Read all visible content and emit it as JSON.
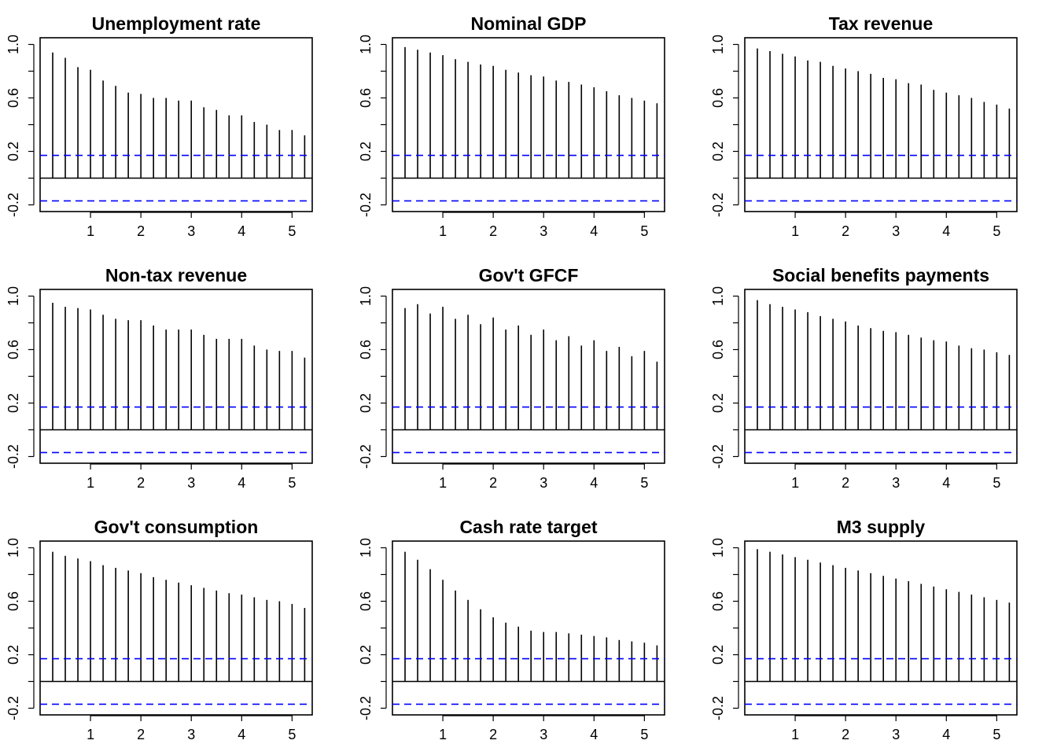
{
  "chart_data": [
    {
      "type": "bar",
      "title": "Unemployment rate",
      "x": [
        0.25,
        0.5,
        0.75,
        1.0,
        1.25,
        1.5,
        1.75,
        2.0,
        2.25,
        2.5,
        2.75,
        3.0,
        3.25,
        3.5,
        3.75,
        4.0,
        4.25,
        4.5,
        4.75,
        5.0,
        5.25
      ],
      "values": [
        0.94,
        0.9,
        0.83,
        0.81,
        0.73,
        0.69,
        0.64,
        0.63,
        0.6,
        0.6,
        0.58,
        0.58,
        0.53,
        0.51,
        0.47,
        0.47,
        0.42,
        0.4,
        0.36,
        0.36,
        0.32
      ],
      "conf_limit": 0.17,
      "xlim": [
        0,
        5.4
      ],
      "ylim": [
        -0.25,
        1.05
      ],
      "xticks": [
        "1",
        "2",
        "3",
        "4",
        "5"
      ],
      "yticks": [
        "-0.2",
        "0.2",
        "0.6",
        "1.0"
      ]
    },
    {
      "type": "bar",
      "title": "Nominal GDP",
      "x": [
        0.25,
        0.5,
        0.75,
        1.0,
        1.25,
        1.5,
        1.75,
        2.0,
        2.25,
        2.5,
        2.75,
        3.0,
        3.25,
        3.5,
        3.75,
        4.0,
        4.25,
        4.5,
        4.75,
        5.0,
        5.25
      ],
      "values": [
        0.98,
        0.96,
        0.94,
        0.92,
        0.89,
        0.87,
        0.85,
        0.84,
        0.81,
        0.79,
        0.77,
        0.76,
        0.73,
        0.72,
        0.7,
        0.68,
        0.65,
        0.62,
        0.6,
        0.58,
        0.56
      ],
      "conf_limit": 0.17,
      "xlim": [
        0,
        5.4
      ],
      "ylim": [
        -0.25,
        1.05
      ],
      "xticks": [
        "1",
        "2",
        "3",
        "4",
        "5"
      ],
      "yticks": [
        "-0.2",
        "0.2",
        "0.6",
        "1.0"
      ]
    },
    {
      "type": "bar",
      "title": "Tax revenue",
      "x": [
        0.25,
        0.5,
        0.75,
        1.0,
        1.25,
        1.5,
        1.75,
        2.0,
        2.25,
        2.5,
        2.75,
        3.0,
        3.25,
        3.5,
        3.75,
        4.0,
        4.25,
        4.5,
        4.75,
        5.0,
        5.25
      ],
      "values": [
        0.97,
        0.95,
        0.93,
        0.91,
        0.88,
        0.87,
        0.84,
        0.82,
        0.8,
        0.78,
        0.75,
        0.74,
        0.71,
        0.7,
        0.66,
        0.64,
        0.62,
        0.6,
        0.57,
        0.55,
        0.52
      ],
      "conf_limit": 0.17,
      "xlim": [
        0,
        5.4
      ],
      "ylim": [
        -0.25,
        1.05
      ],
      "xticks": [
        "1",
        "2",
        "3",
        "4",
        "5"
      ],
      "yticks": [
        "-0.2",
        "0.2",
        "0.6",
        "1.0"
      ]
    },
    {
      "type": "bar",
      "title": "Non-tax revenue",
      "x": [
        0.25,
        0.5,
        0.75,
        1.0,
        1.25,
        1.5,
        1.75,
        2.0,
        2.25,
        2.5,
        2.75,
        3.0,
        3.25,
        3.5,
        3.75,
        4.0,
        4.25,
        4.5,
        4.75,
        5.0,
        5.25
      ],
      "values": [
        0.95,
        0.92,
        0.91,
        0.9,
        0.86,
        0.83,
        0.82,
        0.82,
        0.78,
        0.75,
        0.75,
        0.75,
        0.71,
        0.68,
        0.68,
        0.68,
        0.63,
        0.6,
        0.59,
        0.59,
        0.54
      ],
      "conf_limit": 0.17,
      "xlim": [
        0,
        5.4
      ],
      "ylim": [
        -0.25,
        1.05
      ],
      "xticks": [
        "1",
        "2",
        "3",
        "4",
        "5"
      ],
      "yticks": [
        "-0.2",
        "0.2",
        "0.6",
        "1.0"
      ]
    },
    {
      "type": "bar",
      "title": "Gov't GFCF",
      "x": [
        0.25,
        0.5,
        0.75,
        1.0,
        1.25,
        1.5,
        1.75,
        2.0,
        2.25,
        2.5,
        2.75,
        3.0,
        3.25,
        3.5,
        3.75,
        4.0,
        4.25,
        4.5,
        4.75,
        5.0,
        5.25
      ],
      "values": [
        0.91,
        0.94,
        0.87,
        0.92,
        0.83,
        0.86,
        0.79,
        0.84,
        0.75,
        0.78,
        0.71,
        0.75,
        0.67,
        0.7,
        0.63,
        0.67,
        0.59,
        0.62,
        0.55,
        0.59,
        0.51
      ],
      "conf_limit": 0.17,
      "xlim": [
        0,
        5.4
      ],
      "ylim": [
        -0.25,
        1.05
      ],
      "xticks": [
        "1",
        "2",
        "3",
        "4",
        "5"
      ],
      "yticks": [
        "-0.2",
        "0.2",
        "0.6",
        "1.0"
      ]
    },
    {
      "type": "bar",
      "title": "Social benefits payments",
      "x": [
        0.25,
        0.5,
        0.75,
        1.0,
        1.25,
        1.5,
        1.75,
        2.0,
        2.25,
        2.5,
        2.75,
        3.0,
        3.25,
        3.5,
        3.75,
        4.0,
        4.25,
        4.5,
        4.75,
        5.0,
        5.25
      ],
      "values": [
        0.97,
        0.94,
        0.92,
        0.9,
        0.88,
        0.85,
        0.83,
        0.81,
        0.78,
        0.76,
        0.74,
        0.73,
        0.71,
        0.69,
        0.67,
        0.66,
        0.63,
        0.61,
        0.6,
        0.58,
        0.56
      ],
      "conf_limit": 0.17,
      "xlim": [
        0,
        5.4
      ],
      "ylim": [
        -0.25,
        1.05
      ],
      "xticks": [
        "1",
        "2",
        "3",
        "4",
        "5"
      ],
      "yticks": [
        "-0.2",
        "0.2",
        "0.6",
        "1.0"
      ]
    },
    {
      "type": "bar",
      "title": "Gov't consumption",
      "x": [
        0.25,
        0.5,
        0.75,
        1.0,
        1.25,
        1.5,
        1.75,
        2.0,
        2.25,
        2.5,
        2.75,
        3.0,
        3.25,
        3.5,
        3.75,
        4.0,
        4.25,
        4.5,
        4.75,
        5.0,
        5.25
      ],
      "values": [
        0.97,
        0.94,
        0.92,
        0.9,
        0.87,
        0.85,
        0.83,
        0.81,
        0.78,
        0.76,
        0.74,
        0.72,
        0.7,
        0.68,
        0.66,
        0.65,
        0.63,
        0.61,
        0.6,
        0.58,
        0.55
      ],
      "conf_limit": 0.17,
      "xlim": [
        0,
        5.4
      ],
      "ylim": [
        -0.25,
        1.05
      ],
      "xticks": [
        "1",
        "2",
        "3",
        "4",
        "5"
      ],
      "yticks": [
        "-0.2",
        "0.2",
        "0.6",
        "1.0"
      ]
    },
    {
      "type": "bar",
      "title": "Cash rate target",
      "x": [
        0.25,
        0.5,
        0.75,
        1.0,
        1.25,
        1.5,
        1.75,
        2.0,
        2.25,
        2.5,
        2.75,
        3.0,
        3.25,
        3.5,
        3.75,
        4.0,
        4.25,
        4.5,
        4.75,
        5.0,
        5.25
      ],
      "values": [
        0.97,
        0.91,
        0.84,
        0.76,
        0.68,
        0.61,
        0.54,
        0.48,
        0.44,
        0.41,
        0.38,
        0.37,
        0.37,
        0.36,
        0.35,
        0.34,
        0.33,
        0.31,
        0.3,
        0.29,
        0.27
      ],
      "conf_limit": 0.17,
      "xlim": [
        0,
        5.4
      ],
      "ylim": [
        -0.25,
        1.05
      ],
      "xticks": [
        "1",
        "2",
        "3",
        "4",
        "5"
      ],
      "yticks": [
        "-0.2",
        "0.2",
        "0.6",
        "1.0"
      ]
    },
    {
      "type": "bar",
      "title": "M3 supply",
      "x": [
        0.25,
        0.5,
        0.75,
        1.0,
        1.25,
        1.5,
        1.75,
        2.0,
        2.25,
        2.5,
        2.75,
        3.0,
        3.25,
        3.5,
        3.75,
        4.0,
        4.25,
        4.5,
        4.75,
        5.0,
        5.25
      ],
      "values": [
        0.99,
        0.97,
        0.95,
        0.93,
        0.91,
        0.89,
        0.87,
        0.85,
        0.83,
        0.81,
        0.79,
        0.77,
        0.75,
        0.73,
        0.71,
        0.69,
        0.67,
        0.65,
        0.63,
        0.61,
        0.59
      ],
      "conf_limit": 0.17,
      "xlim": [
        0,
        5.4
      ],
      "ylim": [
        -0.25,
        1.05
      ],
      "xticks": [
        "1",
        "2",
        "3",
        "4",
        "5"
      ],
      "yticks": [
        "-0.2",
        "0.2",
        "0.6",
        "1.0"
      ]
    }
  ],
  "colors": {
    "bars": "#000000",
    "confidence_lines": "#0000ff",
    "frame": "#000000",
    "zero_line": "#000000"
  }
}
